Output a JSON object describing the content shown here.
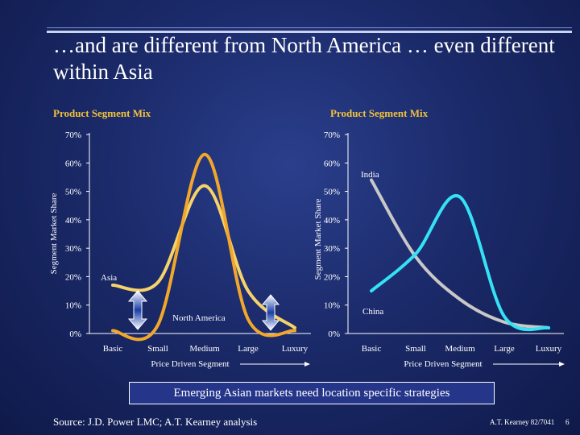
{
  "title": "…and are different from North America … even different within Asia",
  "banner": "Emerging Asian markets need location specific strategies",
  "source": "Source:   J.D. Power LMC;  A.T. Kearney analysis",
  "footer_id": "A.T. Kearney  82/7041",
  "page_number": "6",
  "colors": {
    "accent_gold": "#f2c23a",
    "asia": "#f5d36a",
    "north_america": "#f2a72b",
    "india": "#c8c8c8",
    "china": "#35e2f5",
    "arrow_fill": "#1a3fa8"
  },
  "chart_data": [
    {
      "type": "line",
      "title": "Product Segment Mix",
      "ylabel": "Segment Market Share",
      "xlabel": "Price Driven Segment",
      "categories": [
        "Basic",
        "Small",
        "Medium",
        "Large",
        "Luxury"
      ],
      "yticks": [
        "0%",
        "10%",
        "20%",
        "30%",
        "40%",
        "50%",
        "60%",
        "70%"
      ],
      "ylim": [
        0,
        70
      ],
      "series": [
        {
          "name": "Asia",
          "color": "#f5d36a",
          "values": [
            17,
            18,
            52,
            15,
            2
          ]
        },
        {
          "name": "North America",
          "color": "#f2a72b",
          "values": [
            1,
            3,
            63,
            5,
            1
          ]
        }
      ]
    },
    {
      "type": "line",
      "title": "Product Segment Mix",
      "ylabel": "Segment Market Share",
      "xlabel": "Price Driven Segment",
      "categories": [
        "Basic",
        "Small",
        "Medium",
        "Large",
        "Luxury"
      ],
      "yticks": [
        "0%",
        "10%",
        "20%",
        "30%",
        "40%",
        "50%",
        "60%",
        "70%"
      ],
      "ylim": [
        0,
        70
      ],
      "series": [
        {
          "name": "India",
          "color": "#c8c8c8",
          "values": [
            54,
            27,
            12,
            4,
            2
          ]
        },
        {
          "name": "China",
          "color": "#35e2f5",
          "values": [
            15,
            28,
            48,
            6,
            2
          ]
        }
      ]
    }
  ]
}
